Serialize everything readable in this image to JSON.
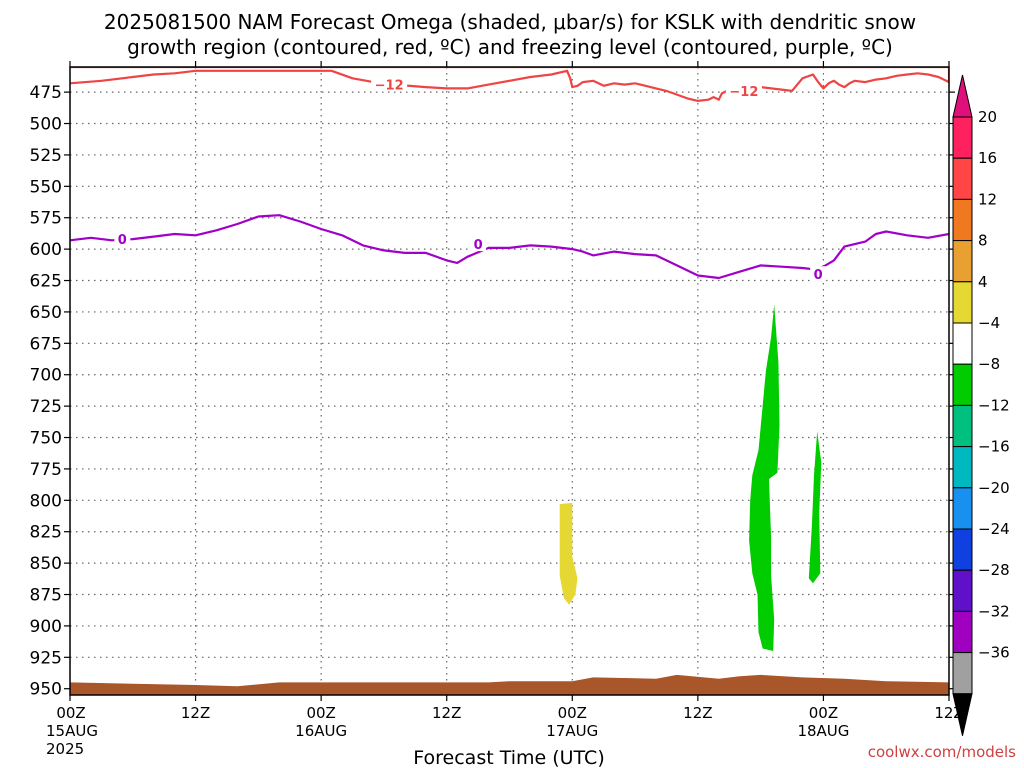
{
  "chart_data": {
    "type": "heatmap",
    "title_lines": [
      "2025081500 NAM Forecast Omega (shaded, μbar/s) for KSLK with dendritic snow",
      "growth region (contoured, red, ºC) and freezing level (contoured, purple, ºC)"
    ],
    "xlabel": "Forecast Time (UTC)",
    "credit": "coolwx.com/models",
    "x_ticks": [
      {
        "hour": 0,
        "lines": [
          "00Z",
          "15AUG",
          "2025"
        ]
      },
      {
        "hour": 12,
        "lines": [
          "12Z"
        ]
      },
      {
        "hour": 24,
        "lines": [
          "00Z",
          "16AUG"
        ]
      },
      {
        "hour": 36,
        "lines": [
          "12Z"
        ]
      },
      {
        "hour": 48,
        "lines": [
          "00Z",
          "17AUG"
        ]
      },
      {
        "hour": 60,
        "lines": [
          "12Z"
        ]
      },
      {
        "hour": 72,
        "lines": [
          "00Z",
          "18AUG"
        ]
      },
      {
        "hour": 84,
        "lines": [
          "12Z"
        ]
      }
    ],
    "xlim": [
      0,
      84
    ],
    "y_ticks": [
      475,
      500,
      525,
      550,
      575,
      600,
      625,
      650,
      675,
      700,
      725,
      750,
      775,
      800,
      825,
      850,
      875,
      900,
      925,
      950
    ],
    "ylim": [
      455,
      955
    ],
    "grid": true,
    "colorbar": {
      "levels": [
        "20",
        "16",
        "12",
        "8",
        "4",
        "−4",
        "−8",
        "−12",
        "−16",
        "−20",
        "−24",
        "−28",
        "−32",
        "−36"
      ],
      "colors": [
        "#ff2060",
        "#ff4545",
        "#f07820",
        "#e8a030",
        "#e6d832",
        "#ffffff",
        "#00cc00",
        "#00c080",
        "#00b8c0",
        "#1890f0",
        "#1040e0",
        "#6010c8",
        "#a000c0",
        "#a0a0a0",
        "#000000"
      ],
      "top_arrow_color": "#e0107a",
      "bottom_arrow_color": "#000000"
    },
    "contours": [
      {
        "name": "dendritic snow growth region",
        "color": "#ee4444",
        "labels": [
          {
            "text": "−12",
            "hour": 30.5,
            "p": 469
          },
          {
            "text": "−12",
            "hour": 64.4,
            "p": 474
          }
        ],
        "points": [
          [
            0,
            468
          ],
          [
            3,
            466
          ],
          [
            6,
            463
          ],
          [
            8,
            461
          ],
          [
            10,
            460
          ],
          [
            12,
            458
          ],
          [
            25,
            458
          ],
          [
            27,
            464
          ],
          [
            29,
            467
          ],
          [
            31,
            469
          ],
          [
            34,
            471
          ],
          [
            36,
            472
          ],
          [
            38,
            472
          ],
          [
            40,
            469
          ],
          [
            42,
            466
          ],
          [
            44,
            463
          ],
          [
            46,
            461
          ],
          [
            47.5,
            458
          ],
          [
            47.8,
            464
          ],
          [
            48,
            471
          ],
          [
            48.5,
            470
          ],
          [
            49,
            467
          ],
          [
            50,
            466
          ],
          [
            51,
            470
          ],
          [
            52,
            468
          ],
          [
            53,
            469
          ],
          [
            54,
            468
          ],
          [
            55,
            470
          ],
          [
            56,
            472
          ],
          [
            57,
            474
          ],
          [
            58,
            477
          ],
          [
            59,
            480
          ],
          [
            60,
            482
          ],
          [
            61,
            481
          ],
          [
            61.5,
            479
          ],
          [
            62,
            481
          ],
          [
            62.3,
            476
          ],
          [
            63,
            473
          ],
          [
            64,
            471
          ],
          [
            66,
            471
          ],
          [
            68,
            473
          ],
          [
            69,
            474
          ],
          [
            70,
            464
          ],
          [
            71,
            461
          ],
          [
            71.5,
            467
          ],
          [
            72,
            472
          ],
          [
            72.5,
            468
          ],
          [
            73,
            466
          ],
          [
            73.5,
            469
          ],
          [
            74,
            471
          ],
          [
            74.5,
            468
          ],
          [
            75,
            466
          ],
          [
            76,
            467
          ],
          [
            77,
            465
          ],
          [
            78,
            464
          ],
          [
            79,
            462
          ],
          [
            80,
            461
          ],
          [
            81,
            460
          ],
          [
            82,
            461
          ],
          [
            83,
            463
          ],
          [
            84,
            467
          ],
          [
            84,
            455
          ],
          [
            0,
            455
          ]
        ]
      },
      {
        "name": "freezing level",
        "color": "#a000c8",
        "labels": [
          {
            "text": "0",
            "hour": 5,
            "p": 592
          },
          {
            "text": "0",
            "hour": 39,
            "p": 596
          },
          {
            "text": "0",
            "hour": 71.5,
            "p": 620
          }
        ],
        "points": [
          [
            0,
            593
          ],
          [
            2,
            591
          ],
          [
            4,
            593
          ],
          [
            6,
            592
          ],
          [
            8,
            590
          ],
          [
            10,
            588
          ],
          [
            12,
            589
          ],
          [
            14,
            585
          ],
          [
            16,
            580
          ],
          [
            18,
            574
          ],
          [
            20,
            573
          ],
          [
            22,
            578
          ],
          [
            24,
            584
          ],
          [
            26,
            589
          ],
          [
            28,
            597
          ],
          [
            30,
            601
          ],
          [
            32,
            603
          ],
          [
            34,
            603
          ],
          [
            36,
            609
          ],
          [
            37,
            611
          ],
          [
            38,
            606
          ],
          [
            40,
            599
          ],
          [
            42,
            599
          ],
          [
            44,
            597
          ],
          [
            46,
            598
          ],
          [
            48,
            600
          ],
          [
            49,
            602
          ],
          [
            50,
            605
          ],
          [
            52,
            602
          ],
          [
            54,
            604
          ],
          [
            56,
            605
          ],
          [
            58,
            613
          ],
          [
            60,
            621
          ],
          [
            62,
            623
          ],
          [
            64,
            618
          ],
          [
            66,
            613
          ],
          [
            68,
            614
          ],
          [
            70,
            615
          ],
          [
            71,
            616
          ],
          [
            72,
            614
          ],
          [
            73,
            609
          ],
          [
            74,
            598
          ],
          [
            76,
            594
          ],
          [
            77,
            588
          ],
          [
            78,
            586
          ],
          [
            80,
            589
          ],
          [
            82,
            591
          ],
          [
            84,
            588
          ]
        ]
      }
    ],
    "omega_areas": [
      {
        "value_range": "4 to 8",
        "color": "#e6d832",
        "points": [
          [
            46.8,
            803
          ],
          [
            48,
            802
          ],
          [
            48,
            845
          ],
          [
            48.5,
            862
          ],
          [
            48.3,
            875
          ],
          [
            47.7,
            883
          ],
          [
            47.2,
            878
          ],
          [
            46.8,
            860
          ]
        ]
      },
      {
        "value_range": "-4 to -8",
        "color": "#00cc00",
        "points": [
          [
            66.5,
            697
          ],
          [
            67,
            670
          ],
          [
            67.3,
            644
          ],
          [
            67.7,
            690
          ],
          [
            67.8,
            740
          ],
          [
            67.6,
            778
          ],
          [
            66.8,
            783
          ],
          [
            67,
            830
          ],
          [
            67,
            860
          ],
          [
            67.3,
            895
          ],
          [
            67.2,
            920
          ],
          [
            66.2,
            918
          ],
          [
            65.8,
            905
          ],
          [
            65.7,
            875
          ],
          [
            65.2,
            858
          ],
          [
            64.9,
            832
          ],
          [
            65.0,
            800
          ],
          [
            65.2,
            780
          ],
          [
            65.8,
            760
          ]
        ]
      },
      {
        "value_range": "-4 to -8",
        "color": "#00cc00",
        "points": [
          [
            71.4,
            745
          ],
          [
            71.8,
            770
          ],
          [
            71.6,
            810
          ],
          [
            71.7,
            858
          ],
          [
            71.0,
            866
          ],
          [
            70.6,
            862
          ],
          [
            70.9,
            820
          ],
          [
            71.1,
            780
          ]
        ]
      }
    ],
    "terrain": {
      "color": "#a9562a",
      "points": [
        [
          0,
          945
        ],
        [
          12,
          947
        ],
        [
          16,
          948
        ],
        [
          20,
          945
        ],
        [
          40,
          945
        ],
        [
          42,
          944
        ],
        [
          48,
          944
        ],
        [
          50,
          941
        ],
        [
          56,
          942
        ],
        [
          58,
          939
        ],
        [
          62,
          942
        ],
        [
          64,
          940
        ],
        [
          66,
          939
        ],
        [
          70,
          941
        ],
        [
          74,
          942
        ],
        [
          78,
          944
        ],
        [
          84,
          945
        ]
      ]
    }
  }
}
